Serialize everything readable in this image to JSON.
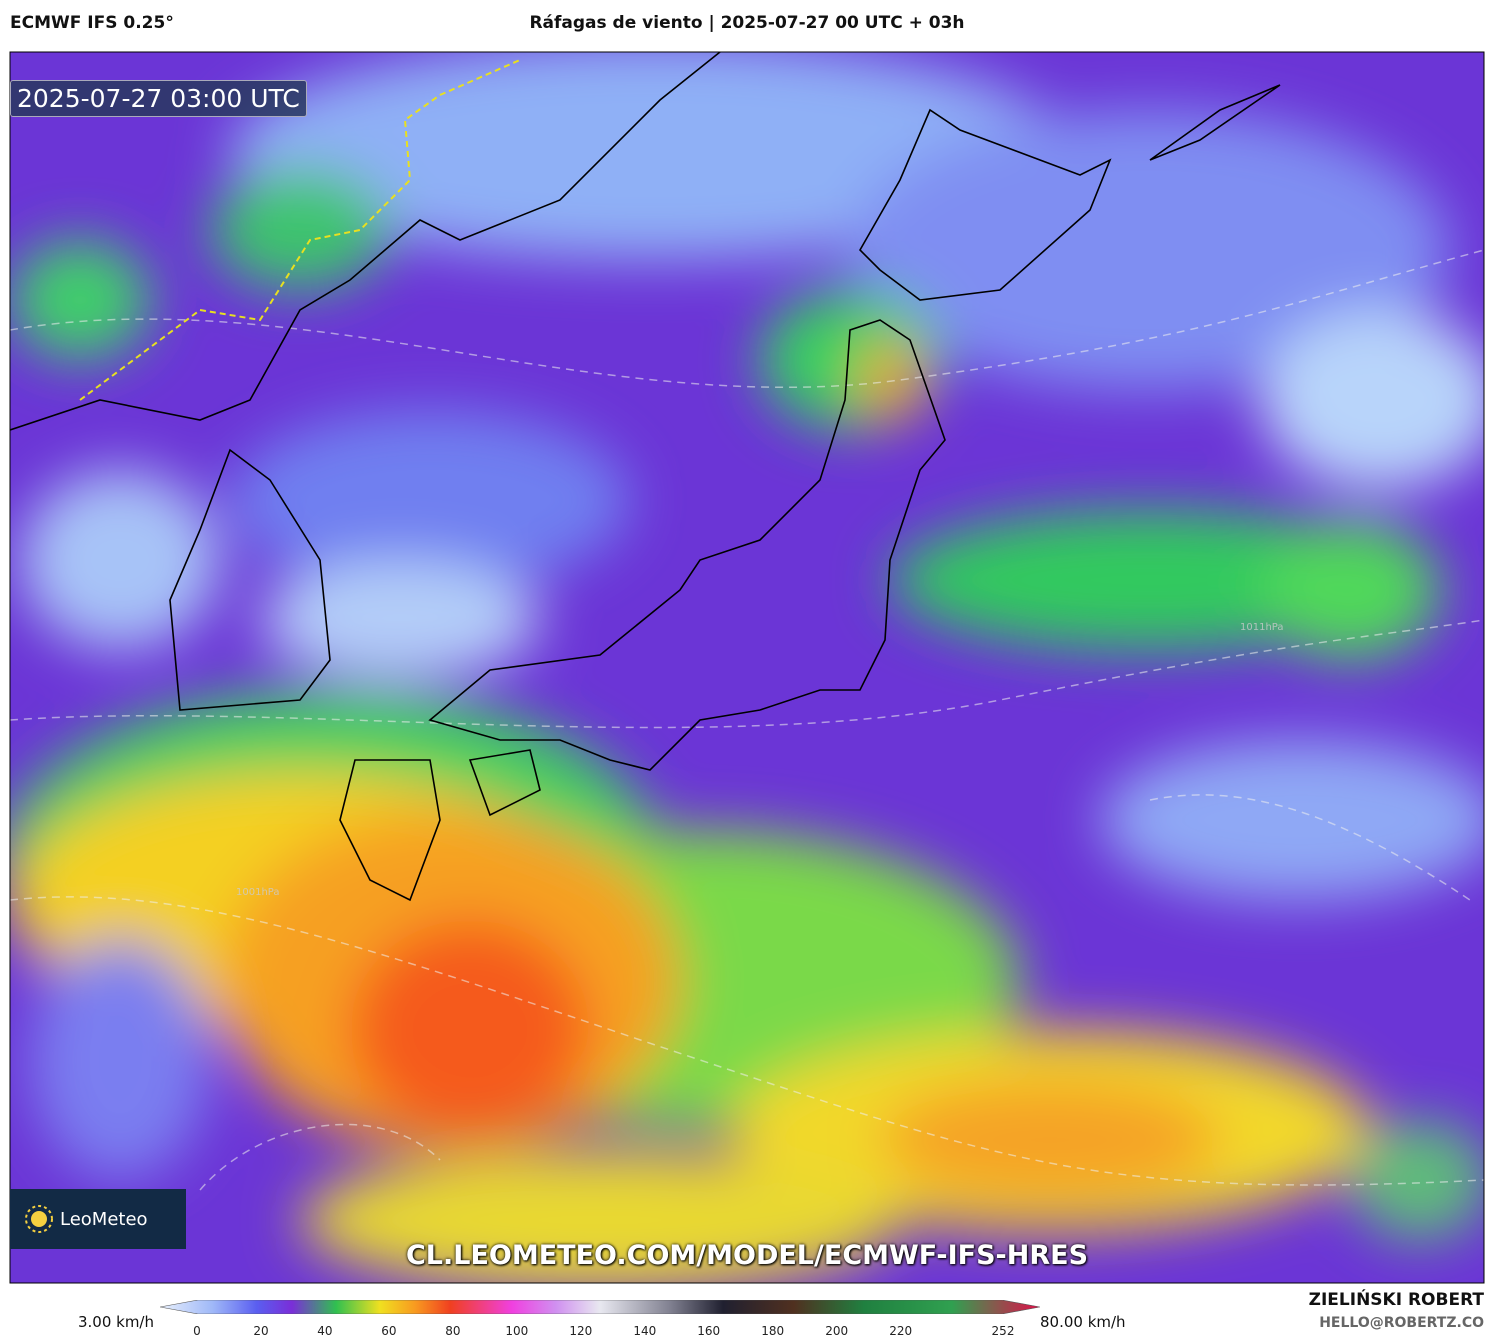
{
  "header": {
    "model": "ECMWF IFS 0.25°",
    "title": "Ráfagas de viento | 2025-07-27 00 UTC + 03h"
  },
  "map": {
    "timestamp": "2025-07-27 03:00 UTC",
    "watermark": "CL.LEOMETEO.COM/MODEL/ECMWF-IFS-HRES",
    "logo": "LeoMeteo",
    "pressure_labels": [
      "1011hPa",
      "1001hPa"
    ]
  },
  "colorbar": {
    "min_label": "3.00 km/h",
    "max_label": "80.00 km/h",
    "ticks": [
      0,
      20,
      40,
      60,
      80,
      100,
      120,
      140,
      160,
      180,
      200,
      220,
      252
    ]
  },
  "footer": {
    "author": "ZIELIŃSKI ROBERT",
    "email": "HELLO@ROBERTZ.CO"
  }
}
